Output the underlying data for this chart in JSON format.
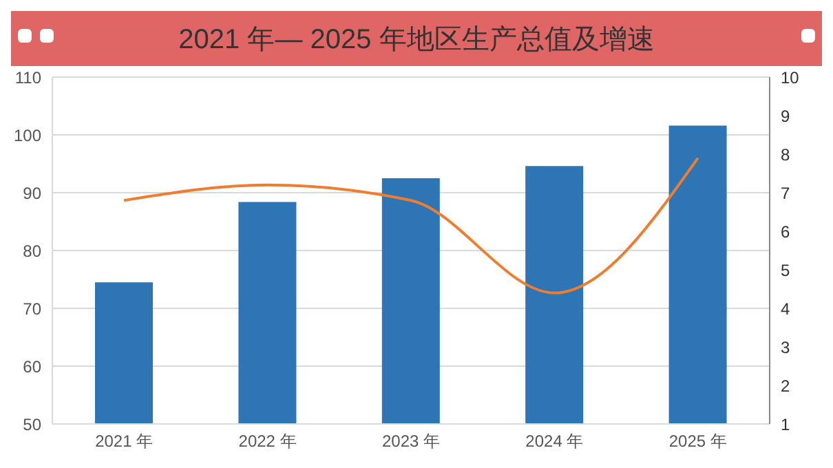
{
  "chart_data": {
    "type": "bar",
    "title": "2021 年— 2025 年地区生产总值及增速",
    "categories": [
      "2021 年",
      "2022 年",
      "2023 年",
      "2024 年",
      "2025 年"
    ],
    "series": [
      {
        "color": "#2e75b6",
        "values": [
          74.5,
          88.4,
          92.5,
          94.6,
          101.6
        ]
      },
      {
        "type": "line",
        "axis": "y2",
        "color": "#ed7d31",
        "values": [
          6.8,
          7.2,
          6.8,
          4.4,
          7.9
        ]
      }
    ],
    "ylim": [
      50,
      110
    ],
    "yticks": [
      50,
      60,
      70,
      80,
      90,
      100,
      110
    ],
    "y2lim": [
      1,
      10
    ],
    "y2ticks": [
      1,
      2,
      3,
      4,
      5,
      6,
      7,
      8,
      9,
      10
    ],
    "grid": "y",
    "legend": false,
    "marker": "none",
    "line_style": "solid"
  }
}
